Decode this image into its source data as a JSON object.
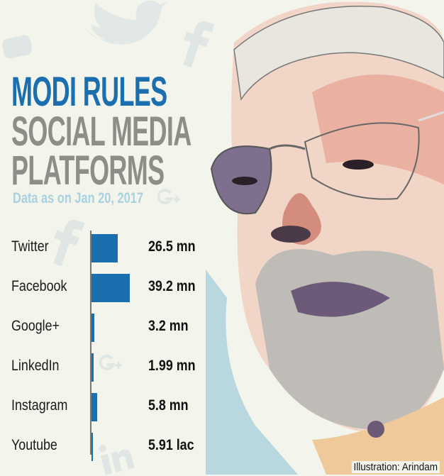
{
  "chart_data": {
    "type": "bar",
    "orientation": "horizontal",
    "title": "MODI RULES SOCIAL MEDIA PLATFORMS",
    "title_lines": [
      "MODI RULES",
      "SOCIAL MEDIA",
      "PLATFORMS"
    ],
    "subtitle": "Data as on Jan 20, 2017",
    "categories": [
      "Twitter",
      "Facebook",
      "Google+",
      "LinkedIn",
      "Instagram",
      "Youtube"
    ],
    "values_mn": [
      26.5,
      39.2,
      3.2,
      1.99,
      5.8,
      0.591
    ],
    "data_labels": [
      "26.5 mn",
      "39.2 mn",
      "3.2 mn",
      "1.99 mn",
      "5.8 mn",
      "5.91 lac"
    ],
    "xlim": [
      0,
      40
    ],
    "grid": false,
    "bar_color": "#1c6fae",
    "title_colors": {
      "line1": "#1c6fae",
      "line2_3": "#8e8e88",
      "subtitle": "#a8d2dd"
    }
  },
  "credit": "Illustration: Arindam",
  "background_icons": [
    "twitter-bird-icon",
    "facebook-icon",
    "youtube-icon",
    "google-plus-icon",
    "linkedin-icon",
    "instagram-icon"
  ]
}
